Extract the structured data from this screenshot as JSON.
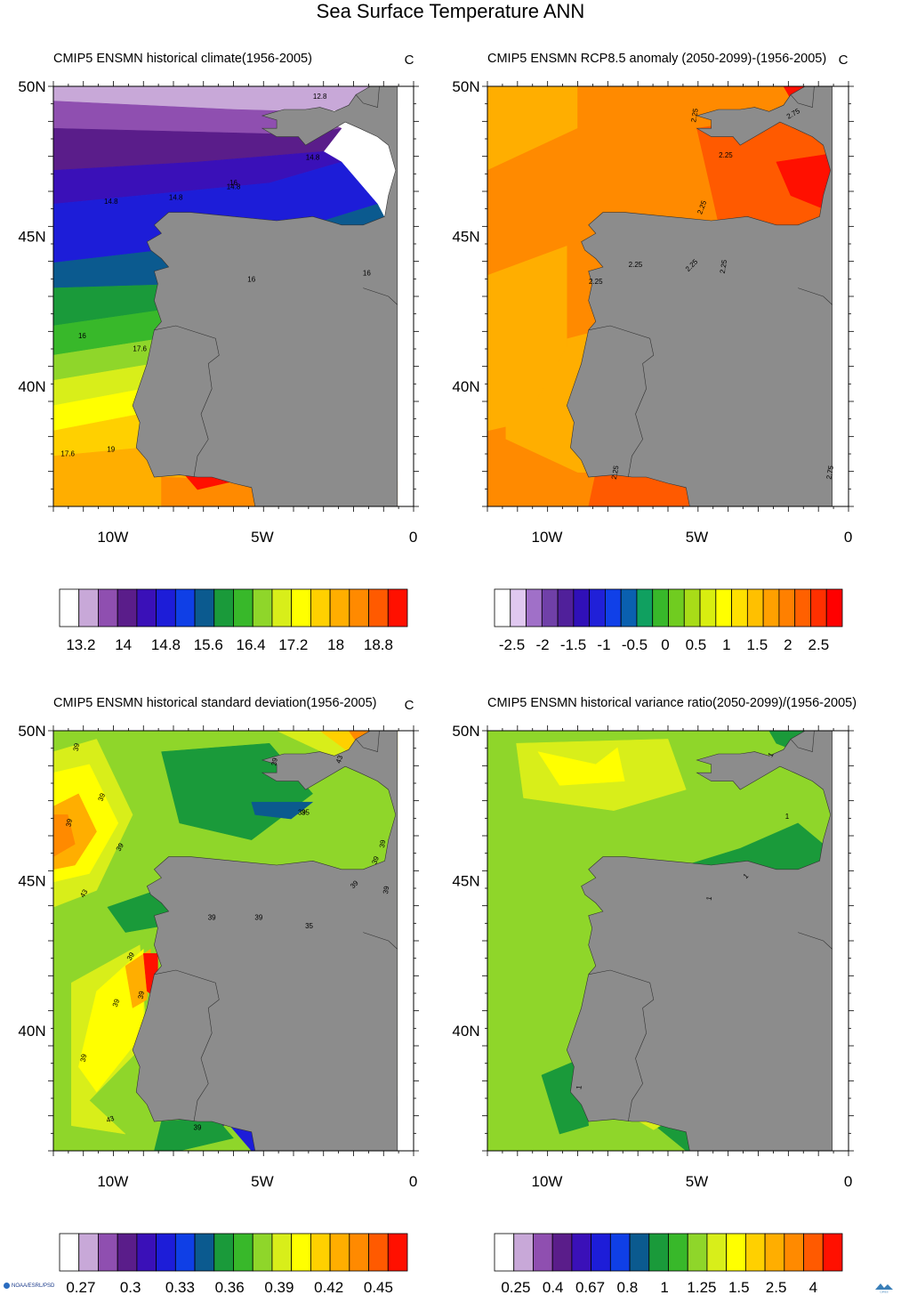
{
  "title": "Sea Surface Temperature ANN",
  "footer_left": "NOAA/ESRL/PSD",
  "footer_right": "CIRES",
  "panels": [
    {
      "title": "CMIP5 ENSMN historical climate(1956-2005)",
      "corner": "C",
      "palette": [
        "#ffffff",
        "#c8a8d8",
        "#8f4fb0",
        "#5a1d8a",
        "#3a10b8",
        "#1d1dd8",
        "#0f3fe6",
        "#0b5a8f",
        "#1a9a3a",
        "#38b82a",
        "#8fd62a",
        "#d8ee1a",
        "#ffff00",
        "#ffd000",
        "#ffae00",
        "#ff8a00",
        "#ff5a00",
        "#ff1000"
      ],
      "colorbar_labels": [
        "13.2",
        "14",
        "14.8",
        "15.6",
        "16.4",
        "17.2",
        "18",
        "18.8"
      ],
      "contour_labels": [
        "12.8",
        "14.8",
        "14.8",
        "14.8",
        "14.8",
        "16",
        "16",
        "16",
        "16",
        "17.6",
        "17.6",
        "19"
      ]
    },
    {
      "title": "CMIP5 ENSMN RCP8.5 anomaly (2050-2099)-(1956-2005)",
      "corner": "C",
      "palette": [
        "#ffffff",
        "#e0c8f0",
        "#a070c8",
        "#7040a8",
        "#50209a",
        "#3010b8",
        "#2020d8",
        "#1040e8",
        "#0a60b0",
        "#10a060",
        "#38b82a",
        "#70cc20",
        "#a8dc18",
        "#d8ee10",
        "#ffff00",
        "#ffe000",
        "#ffc000",
        "#ffa000",
        "#ff8000",
        "#ff6000",
        "#ff3000",
        "#ff0000"
      ],
      "colorbar_labels": [
        "-2.5",
        "-2",
        "-1.5",
        "-1",
        "-0.5",
        "0",
        "0.5",
        "1",
        "1.5",
        "2",
        "2.5"
      ],
      "contour_labels": [
        "2.25",
        "2.75",
        "2.25",
        "2.25",
        "2.25",
        "2.25",
        "2.25",
        "2.25",
        "2.25",
        "2.75"
      ]
    },
    {
      "title": "CMIP5 ENSMN historical standard deviation(1956-2005)",
      "corner": "C",
      "palette": [
        "#ffffff",
        "#c8a8d8",
        "#8f4fb0",
        "#5a1d8a",
        "#3a10b8",
        "#1d1dd8",
        "#0f3fe6",
        "#0b5a8f",
        "#1a9a3a",
        "#38b82a",
        "#8fd62a",
        "#d8ee1a",
        "#ffff00",
        "#ffd000",
        "#ffae00",
        "#ff8a00",
        "#ff5a00",
        "#ff1000"
      ],
      "colorbar_labels": [
        "0.27",
        "0.3",
        "0.33",
        "0.36",
        "0.39",
        "0.42",
        "0.45"
      ],
      "contour_labels": [
        "39",
        "39",
        "43",
        "39",
        "39",
        "39",
        "43",
        "39",
        "39",
        "39",
        "35",
        "39",
        "39",
        "39",
        "39",
        "39",
        "43",
        "39",
        "39",
        "39",
        "39",
        "35"
      ]
    },
    {
      "title": "CMIP5 ENSMN historical variance ratio(2050-2099)/(1956-2005)",
      "corner": "",
      "palette": [
        "#ffffff",
        "#c8a8d8",
        "#8f4fb0",
        "#5a1d8a",
        "#3a10b8",
        "#1d1dd8",
        "#0f3fe6",
        "#0b5a8f",
        "#1a9a3a",
        "#38b82a",
        "#8fd62a",
        "#d8ee1a",
        "#ffff00",
        "#ffd000",
        "#ffae00",
        "#ff8a00",
        "#ff5a00",
        "#ff1000"
      ],
      "colorbar_labels": [
        "0.25",
        "0.4",
        "0.67",
        "0.8",
        "1",
        "1.25",
        "1.5",
        "2.5",
        "4"
      ],
      "contour_labels": [
        "1",
        "1",
        "1",
        "1",
        "1"
      ]
    }
  ],
  "lat_labels": [
    "50N",
    "45N",
    "40N"
  ],
  "lon_labels": [
    "10W",
    "5W",
    "0"
  ],
  "land_color": "#8c8c8c"
}
